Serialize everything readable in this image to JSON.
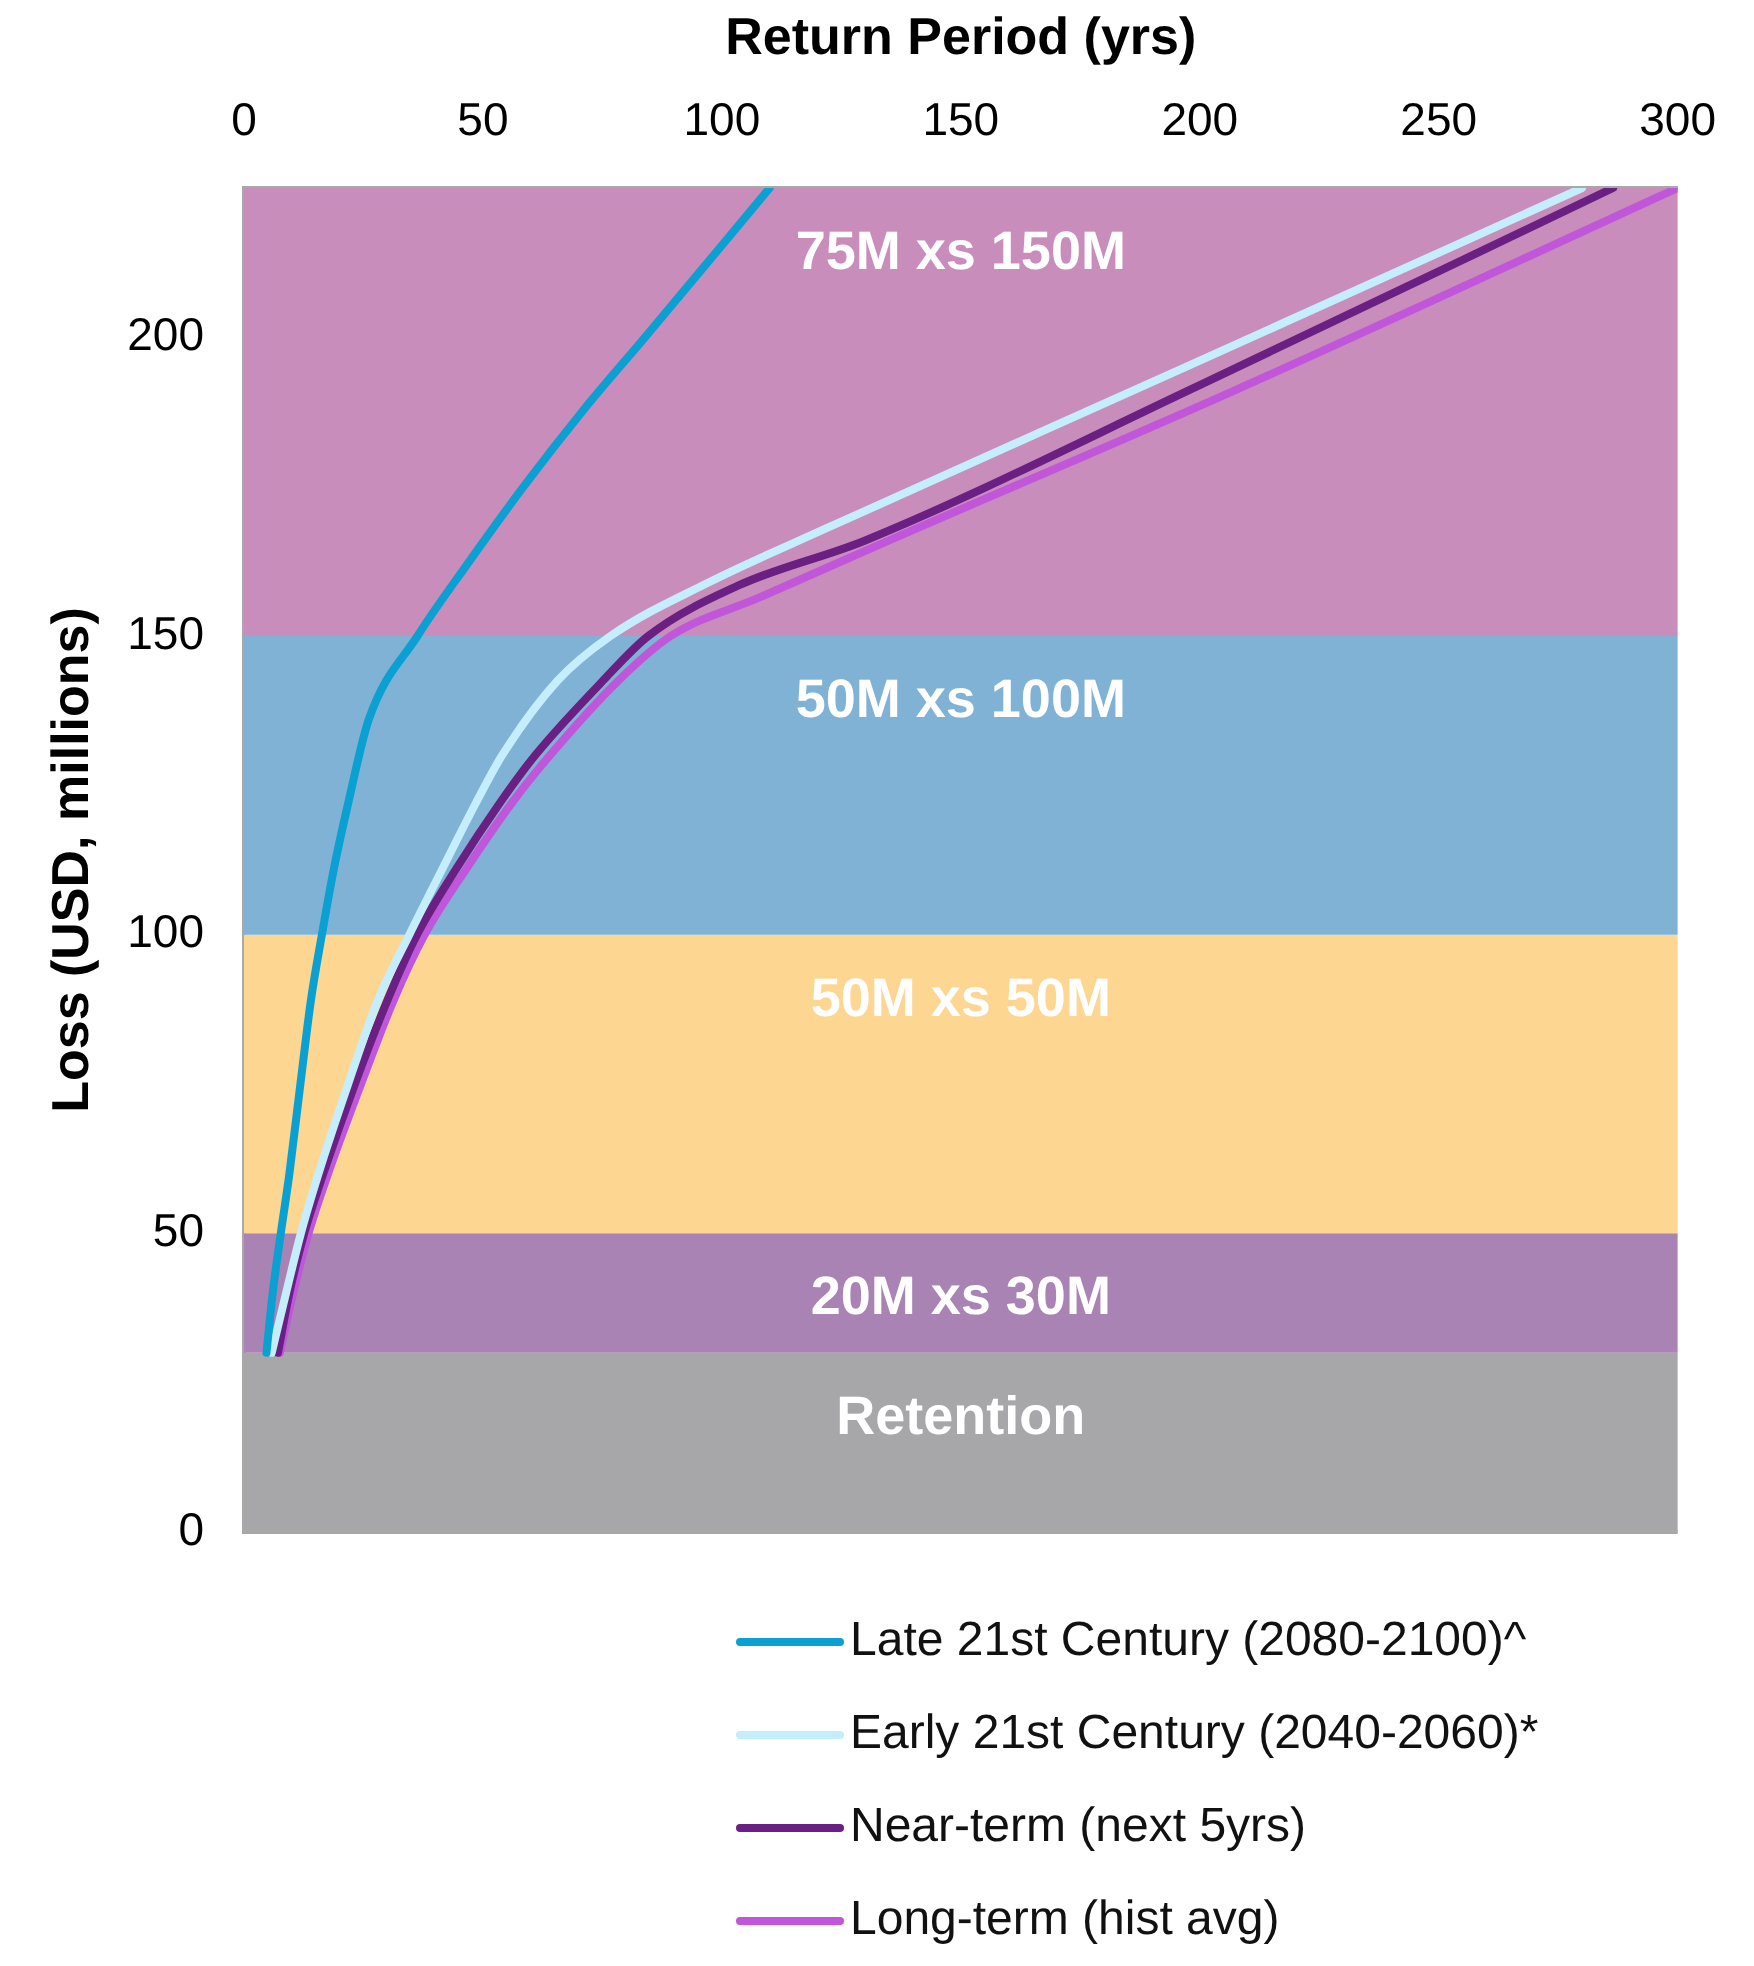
{
  "chart_data": {
    "type": "line",
    "xlabel": "Return Period (yrs)",
    "ylabel": "Loss (USD, millions)",
    "xlim": [
      0,
      300
    ],
    "xticks": [
      0,
      50,
      100,
      150,
      200,
      250,
      300
    ],
    "ylim": [
      0,
      225
    ],
    "yticks": [
      0,
      50,
      100,
      150,
      200
    ],
    "grid": false,
    "legend": "bottom",
    "marker": "none",
    "line_style": "solid",
    "bands": [
      {
        "axis": "y",
        "from": 0,
        "to": 30,
        "label": "Retention",
        "color": "#a7a7aa"
      },
      {
        "axis": "y",
        "from": 30,
        "to": 50,
        "label": "20M xs 30M",
        "color": "#a983b3"
      },
      {
        "axis": "y",
        "from": 50,
        "to": 100,
        "label": "50M xs 50M",
        "color": "#fdd692"
      },
      {
        "axis": "y",
        "from": 100,
        "to": 150,
        "label": "50M xs 100M",
        "color": "#7fb2d4"
      },
      {
        "axis": "y",
        "from": 150,
        "to": 225,
        "label": "75M xs 150M",
        "color": "#c98dbc"
      }
    ],
    "series": [
      {
        "name": "Late 21st Century (2080-2100)^",
        "color": "#0aa0d1",
        "x": [
          4.7,
          6,
          7.7,
          9.5,
          11.8,
          14,
          16.3,
          18.8,
          21.8,
          26.1,
          36.3,
          46.7,
          58.5,
          71.2,
          83.9,
          97.5,
          110
        ],
        "values": [
          30,
          40,
          50,
          60,
          75,
          89,
          100,
          111,
          122,
          136,
          150,
          162,
          175,
          188,
          200,
          213,
          225
        ]
      },
      {
        "name": "Early 21st Century (2040-2060)*",
        "color": "#c4eefb",
        "x": [
          5.8,
          8.8,
          11.9,
          15.6,
          21.8,
          28,
          34.6,
          41.5,
          48.5,
          54,
          65.6,
          76.7,
          97.3,
          121.8,
          197,
          280
        ],
        "values": [
          30,
          40,
          50,
          60,
          75,
          89,
          100,
          111,
          122,
          130,
          142.5,
          150,
          159,
          168,
          195,
          225
        ]
      },
      {
        "name": "Near-term (next 5yrs)",
        "color": "#6a1f83",
        "x": [
          7.1,
          9.5,
          12.6,
          16.6,
          23.2,
          30,
          36.2,
          44.4,
          53.5,
          60.9,
          75.1,
          84.6,
          103.6,
          130,
          200,
          286.5
        ],
        "values": [
          30,
          40,
          50,
          60,
          75,
          89,
          100,
          111,
          122,
          130,
          142.5,
          150,
          158.5,
          166,
          192,
          225
        ]
      },
      {
        "name": "Long-term (hist avg)",
        "color": "#c056d9",
        "x": [
          7.5,
          10.3,
          13.5,
          17.6,
          24.5,
          31.3,
          37.8,
          46.5,
          56,
          64,
          78.3,
          89.3,
          108,
          135,
          207,
          300
        ],
        "values": [
          30,
          40,
          50,
          60,
          75,
          89,
          100,
          111,
          122,
          130,
          142.5,
          150,
          156.5,
          166,
          191,
          225
        ]
      }
    ]
  }
}
